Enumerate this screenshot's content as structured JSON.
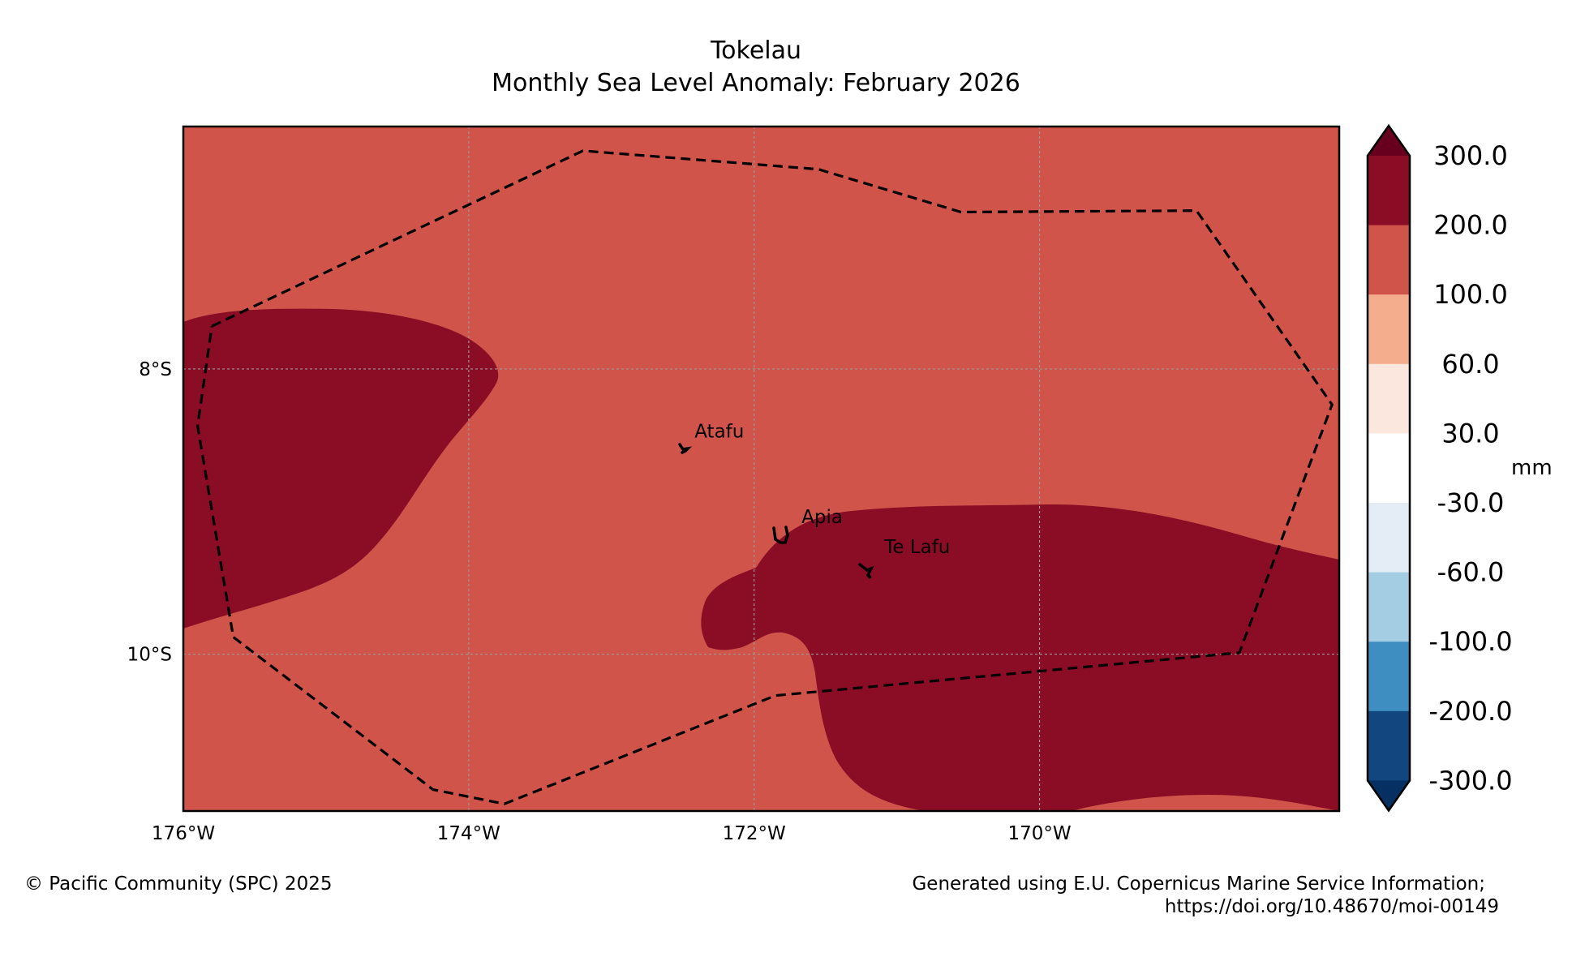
{
  "title": {
    "line1": "Tokelau",
    "line2": "Monthly Sea Level Anomaly: February 2026"
  },
  "map": {
    "lon_ticks": [
      {
        "label": "176°W",
        "lon": -176
      },
      {
        "label": "174°W",
        "lon": -174
      },
      {
        "label": "172°W",
        "lon": -172
      },
      {
        "label": "170°W",
        "lon": -170
      }
    ],
    "lat_ticks": [
      {
        "label": "8°S",
        "lat": -8
      },
      {
        "label": "10°S",
        "lat": -10
      }
    ],
    "extent": {
      "lon_min": -176,
      "lon_max": -167.9,
      "lat_min": -11.1,
      "lat_max": -6.3
    },
    "background_color": "#d0544a",
    "high_anomaly_color": "#8a0c25",
    "places": [
      {
        "name": "Atafu",
        "lon": -172.52,
        "lat": -8.55
      },
      {
        "name": "Apia",
        "lon": -171.77,
        "lat": -9.15
      },
      {
        "name": "Te Lafu",
        "lon": -171.19,
        "lat": -9.36
      }
    ],
    "eez_boundary": [
      [
        -175.8,
        -7.7
      ],
      [
        -173.2,
        -6.47
      ],
      [
        -171.55,
        -6.6
      ],
      [
        -170.55,
        -6.9
      ],
      [
        -168.9,
        -6.89
      ],
      [
        -167.95,
        -8.25
      ],
      [
        -168.6,
        -9.99
      ],
      [
        -171.85,
        -10.29
      ],
      [
        -173.75,
        -11.05
      ],
      [
        -174.25,
        -10.95
      ],
      [
        -175.65,
        -9.88
      ],
      [
        -175.9,
        -8.4
      ],
      [
        -175.8,
        -7.7
      ]
    ]
  },
  "colorbar": {
    "unit": "mm",
    "levels": [
      {
        "label": "300.0",
        "color": "#8a0c25"
      },
      {
        "label": "200.0",
        "color": "#d0544a"
      },
      {
        "label": "100.0",
        "color": "#f4ae8e"
      },
      {
        "label": "60.0",
        "color": "#fbe7de"
      },
      {
        "label": "30.0",
        "color": "#ffffff"
      },
      {
        "label": "-30.0",
        "color": "#e4ecf5"
      },
      {
        "label": "-60.0",
        "color": "#a4cde3"
      },
      {
        "label": "-100.0",
        "color": "#3f8ec1"
      },
      {
        "label": "-200.0",
        "color": "#12467f"
      },
      {
        "label": "-300.0",
        "color": "#053061"
      }
    ],
    "top_extend_color": "#67001f",
    "bottom_extend_color": "#053061"
  },
  "footer": {
    "copyright": "© Pacific Community (SPC) 2025",
    "credit_line1": "Generated using E.U. Copernicus Marine Service Information;",
    "credit_line2": "https://doi.org/10.48670/moi-00149"
  }
}
